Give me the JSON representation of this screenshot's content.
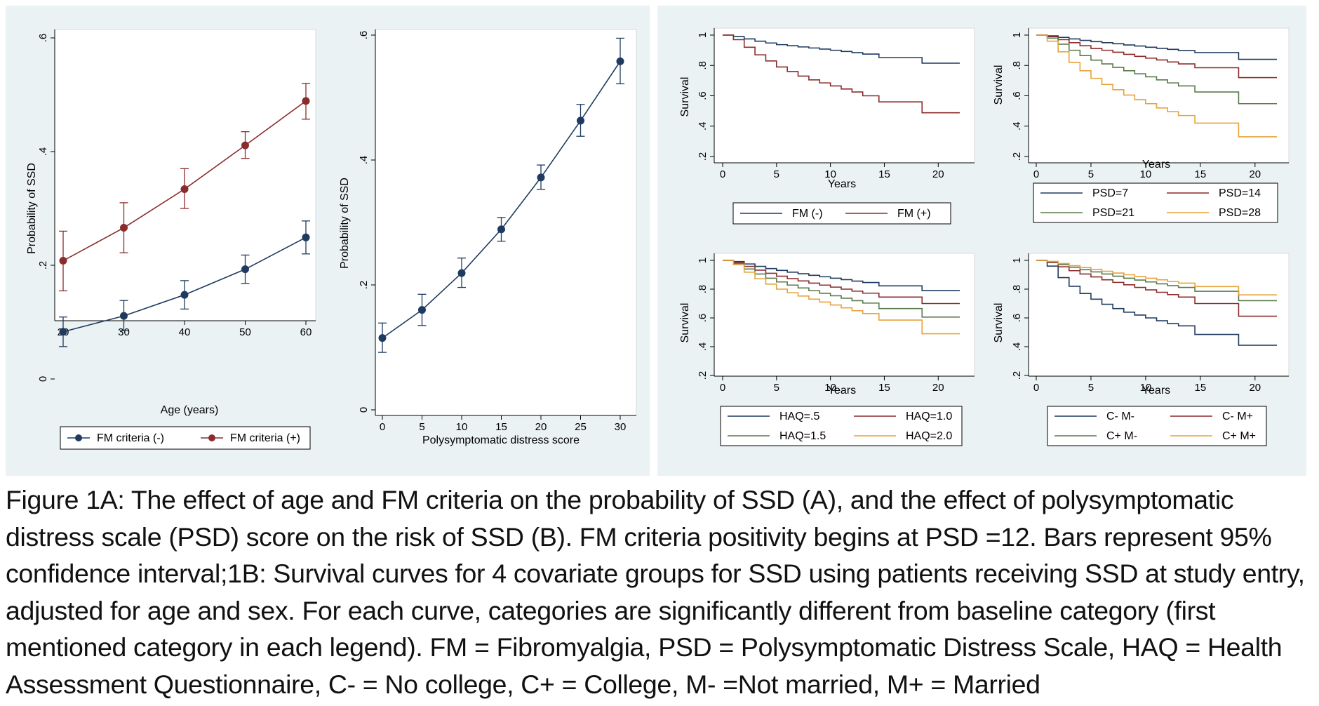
{
  "caption": "Figure 1A: The effect of age and FM criteria on the probability of SSD (A), and the effect of polysymptomatic distress scale (PSD) score on the risk of SSD (B). FM criteria positivity begins at PSD =12. Bars represent 95% confidence interval;1B: Survival curves for 4 covariate groups for SSD using patients receiving SSD at study entry, adjusted for age and sex. For each curve, categories are significantly different from baseline category (first mentioned category in each legend). FM = Fibromyalgia, PSD = Polysymptomatic Distress Scale, HAQ = Health Assessment Questionnaire, C- = No college, C+ = College, M- =Not married, M+ = Married",
  "colors": {
    "navy": "#1f3a60",
    "maroon": "#8b2c2c",
    "green": "#5a7a4a",
    "orange": "#e8a23a",
    "panel_bg": "#eaf2f3"
  },
  "chart_data": [
    {
      "id": "A1",
      "type": "line",
      "xlabel": "Age (years)",
      "ylabel": "Probability of SSD",
      "xlim": [
        20,
        60
      ],
      "ylim": [
        0,
        0.6
      ],
      "xticks": [
        20,
        30,
        40,
        50,
        60
      ],
      "xtick_labels": [
        "20",
        "30",
        "40",
        "50",
        "60"
      ],
      "yticks": [
        0,
        0.2,
        0.4,
        0.6
      ],
      "ytick_labels": [
        "0",
        ".2",
        ".4",
        ".6"
      ],
      "series": [
        {
          "name": "FM criteria (-)",
          "color": "#1f3a60",
          "x": [
            20,
            30,
            40,
            50,
            60
          ],
          "values": [
            0.083,
            0.111,
            0.148,
            0.193,
            0.249
          ],
          "lower": [
            0.057,
            0.085,
            0.123,
            0.168,
            0.22
          ],
          "upper": [
            0.109,
            0.138,
            0.173,
            0.218,
            0.278
          ]
        },
        {
          "name": "FM criteria (+)",
          "color": "#8b2c2c",
          "x": [
            20,
            30,
            40,
            50,
            60
          ],
          "values": [
            0.208,
            0.266,
            0.334,
            0.411,
            0.489
          ],
          "lower": [
            0.155,
            0.222,
            0.3,
            0.388,
            0.457
          ],
          "upper": [
            0.26,
            0.31,
            0.37,
            0.435,
            0.52
          ]
        }
      ]
    },
    {
      "id": "A2",
      "type": "line",
      "xlabel": "Polysymptomatic distress score",
      "ylabel": "Probability of SSD",
      "xlim": [
        0,
        30
      ],
      "ylim": [
        0,
        0.6
      ],
      "xticks": [
        0,
        5,
        10,
        15,
        20,
        25,
        30
      ],
      "xtick_labels": [
        "0",
        "5",
        "10",
        "15",
        "20",
        "25",
        "30"
      ],
      "yticks": [
        0,
        0.2,
        0.4,
        0.6
      ],
      "ytick_labels": [
        "0",
        ".2",
        ".4",
        ".6"
      ],
      "series": [
        {
          "name": "PSD",
          "color": "#1f3a60",
          "x": [
            0,
            5,
            10,
            15,
            20,
            25,
            30
          ],
          "values": [
            0.115,
            0.16,
            0.219,
            0.289,
            0.372,
            0.463,
            0.558
          ],
          "lower": [
            0.092,
            0.135,
            0.196,
            0.27,
            0.353,
            0.438,
            0.522
          ],
          "upper": [
            0.139,
            0.185,
            0.243,
            0.308,
            0.392,
            0.489,
            0.595
          ]
        }
      ]
    },
    {
      "id": "B1",
      "type": "line",
      "step": true,
      "xlabel": "Years",
      "ylabel": "Survival",
      "xlim": [
        0,
        22
      ],
      "ylim": [
        0.2,
        1
      ],
      "xticks": [
        0,
        5,
        10,
        15,
        20
      ],
      "xtick_labels": [
        "0",
        "5",
        "10",
        "15",
        "20"
      ],
      "yticks": [
        0.2,
        0.4,
        0.6,
        0.8,
        1
      ],
      "ytick_labels": [
        ".2",
        ".4",
        ".6",
        ".8",
        "1"
      ],
      "legend": [
        "FM (-)",
        "FM (+)"
      ],
      "series": [
        {
          "name": "FM (-)",
          "color": "#1f3a60",
          "x": [
            0,
            0.6,
            1,
            2,
            3,
            4,
            5,
            6,
            7,
            8,
            9,
            10,
            11,
            12,
            13,
            14.5,
            18.5,
            22
          ],
          "values": [
            1.0,
            1.0,
            0.99,
            0.975,
            0.96,
            0.948,
            0.937,
            0.93,
            0.922,
            0.915,
            0.908,
            0.9,
            0.892,
            0.884,
            0.875,
            0.852,
            0.815,
            0.815
          ]
        },
        {
          "name": "FM (+)",
          "color": "#8b2c2c",
          "x": [
            0,
            0.6,
            1,
            2,
            3,
            4,
            5,
            6,
            7,
            8,
            9,
            10,
            11,
            12,
            13,
            14.5,
            18.5,
            22
          ],
          "values": [
            1.0,
            1.0,
            0.97,
            0.92,
            0.87,
            0.83,
            0.79,
            0.76,
            0.73,
            0.705,
            0.685,
            0.665,
            0.645,
            0.625,
            0.6,
            0.56,
            0.488,
            0.488
          ]
        }
      ]
    },
    {
      "id": "B2",
      "type": "line",
      "step": true,
      "xlabel": "Years",
      "ylabel": "Survival",
      "xlim": [
        0,
        22
      ],
      "ylim": [
        0.2,
        1
      ],
      "xticks": [
        0,
        5,
        10,
        15,
        20
      ],
      "xtick_labels": [
        "0",
        "5",
        "10",
        "15",
        "20"
      ],
      "yticks": [
        0.2,
        0.4,
        0.6,
        0.8,
        1
      ],
      "ytick_labels": [
        ".2",
        ".4",
        ".6",
        ".8",
        "1"
      ],
      "legend": [
        "PSD=7",
        "PSD=14",
        "PSD=21",
        "PSD=28"
      ],
      "series": [
        {
          "name": "PSD=7",
          "color": "#1f3a60",
          "x": [
            0,
            0.6,
            1,
            2,
            3,
            4,
            5,
            6,
            7,
            8,
            9,
            10,
            11,
            12,
            13,
            14.5,
            18.5,
            22
          ],
          "values": [
            1.0,
            1.0,
            0.995,
            0.985,
            0.975,
            0.965,
            0.957,
            0.95,
            0.943,
            0.935,
            0.928,
            0.92,
            0.913,
            0.906,
            0.898,
            0.885,
            0.84,
            0.84
          ]
        },
        {
          "name": "PSD=14",
          "color": "#8b2c2c",
          "x": [
            0,
            0.6,
            1,
            2,
            3,
            4,
            5,
            6,
            7,
            8,
            9,
            10,
            11,
            12,
            13,
            14.5,
            18.5,
            22
          ],
          "values": [
            1.0,
            1.0,
            0.99,
            0.97,
            0.95,
            0.93,
            0.912,
            0.9,
            0.887,
            0.873,
            0.86,
            0.848,
            0.836,
            0.823,
            0.81,
            0.785,
            0.72,
            0.72
          ]
        },
        {
          "name": "PSD=21",
          "color": "#5a7a4a",
          "x": [
            0,
            0.6,
            1,
            2,
            3,
            4,
            5,
            6,
            7,
            8,
            9,
            10,
            11,
            12,
            13,
            14.5,
            18.5,
            22
          ],
          "values": [
            1.0,
            1.0,
            0.98,
            0.94,
            0.9,
            0.865,
            0.835,
            0.81,
            0.787,
            0.765,
            0.745,
            0.725,
            0.705,
            0.685,
            0.665,
            0.625,
            0.548,
            0.548
          ]
        },
        {
          "name": "PSD=28",
          "color": "#e8a23a",
          "x": [
            0,
            0.6,
            1,
            2,
            3,
            4,
            5,
            6,
            7,
            8,
            9,
            10,
            11,
            12,
            13,
            14.5,
            18.5,
            22
          ],
          "values": [
            1.0,
            1.0,
            0.96,
            0.89,
            0.82,
            0.765,
            0.715,
            0.675,
            0.64,
            0.605,
            0.575,
            0.548,
            0.52,
            0.495,
            0.47,
            0.42,
            0.33,
            0.33
          ]
        }
      ]
    },
    {
      "id": "B3",
      "type": "line",
      "step": true,
      "xlabel": "Years",
      "ylabel": "Survival",
      "xlim": [
        0,
        22
      ],
      "ylim": [
        0.2,
        1
      ],
      "xticks": [
        0,
        5,
        10,
        15,
        20
      ],
      "xtick_labels": [
        "0",
        "5",
        "10",
        "15",
        "20"
      ],
      "yticks": [
        0.2,
        0.4,
        0.6,
        0.8,
        1
      ],
      "ytick_labels": [
        ".2",
        ".4",
        ".6",
        ".8",
        "1"
      ],
      "legend": [
        "HAQ=.5",
        "HAQ=1.0",
        "HAQ=1.5",
        "HAQ=2.0"
      ],
      "series": [
        {
          "name": "HAQ=.5",
          "color": "#1f3a60",
          "x": [
            0,
            0.6,
            1,
            2,
            3,
            4,
            5,
            6,
            7,
            8,
            9,
            10,
            11,
            12,
            13,
            14.5,
            18.5,
            22
          ],
          "values": [
            1.0,
            1.0,
            0.992,
            0.975,
            0.958,
            0.943,
            0.93,
            0.918,
            0.907,
            0.896,
            0.886,
            0.876,
            0.866,
            0.856,
            0.846,
            0.823,
            0.79,
            0.79
          ]
        },
        {
          "name": "HAQ=1.0",
          "color": "#8b2c2c",
          "x": [
            0,
            0.6,
            1,
            2,
            3,
            4,
            5,
            6,
            7,
            8,
            9,
            10,
            11,
            12,
            13,
            14.5,
            18.5,
            22
          ],
          "values": [
            1.0,
            1.0,
            0.985,
            0.958,
            0.932,
            0.91,
            0.89,
            0.873,
            0.857,
            0.842,
            0.828,
            0.814,
            0.8,
            0.786,
            0.772,
            0.745,
            0.7,
            0.7
          ]
        },
        {
          "name": "HAQ=1.5",
          "color": "#5a7a4a",
          "x": [
            0,
            0.6,
            1,
            2,
            3,
            4,
            5,
            6,
            7,
            8,
            9,
            10,
            11,
            12,
            13,
            14.5,
            18.5,
            22
          ],
          "values": [
            1.0,
            1.0,
            0.978,
            0.94,
            0.905,
            0.876,
            0.85,
            0.828,
            0.808,
            0.789,
            0.771,
            0.754,
            0.737,
            0.72,
            0.703,
            0.665,
            0.606,
            0.606
          ]
        },
        {
          "name": "HAQ=2.0",
          "color": "#e8a23a",
          "x": [
            0,
            0.6,
            1,
            2,
            3,
            4,
            5,
            6,
            7,
            8,
            9,
            10,
            11,
            12,
            13,
            14.5,
            18.5,
            22
          ],
          "values": [
            1.0,
            1.0,
            0.97,
            0.918,
            0.872,
            0.835,
            0.8,
            0.775,
            0.752,
            0.73,
            0.71,
            0.69,
            0.67,
            0.65,
            0.63,
            0.585,
            0.49,
            0.49
          ]
        }
      ]
    },
    {
      "id": "B4",
      "type": "line",
      "step": true,
      "xlabel": "Years",
      "ylabel": "Survival",
      "xlim": [
        0,
        22
      ],
      "ylim": [
        0.2,
        1
      ],
      "xticks": [
        0,
        5,
        10,
        15,
        20
      ],
      "xtick_labels": [
        "0",
        "5",
        "10",
        "15",
        "20"
      ],
      "yticks": [
        0.2,
        0.4,
        0.6,
        0.8,
        1
      ],
      "ytick_labels": [
        ".2",
        ".4",
        ".6",
        ".8",
        "1"
      ],
      "legend": [
        "C- M-",
        "C- M+",
        "C+ M-",
        "C+ M+"
      ],
      "series": [
        {
          "name": "C- M-",
          "color": "#1f3a60",
          "x": [
            0,
            0.6,
            1,
            2,
            3,
            4,
            5,
            6,
            7,
            8,
            9,
            10,
            11,
            12,
            13,
            14.5,
            18.5,
            22
          ],
          "values": [
            1.0,
            1.0,
            0.96,
            0.88,
            0.82,
            0.77,
            0.73,
            0.695,
            0.665,
            0.64,
            0.62,
            0.6,
            0.58,
            0.56,
            0.545,
            0.485,
            0.41,
            0.41
          ]
        },
        {
          "name": "C- M+",
          "color": "#8b2c2c",
          "x": [
            0,
            0.6,
            1,
            2,
            3,
            4,
            5,
            6,
            7,
            8,
            9,
            10,
            11,
            12,
            13,
            14.5,
            18.5,
            22
          ],
          "values": [
            1.0,
            1.0,
            0.985,
            0.955,
            0.928,
            0.905,
            0.885,
            0.865,
            0.847,
            0.83,
            0.812,
            0.795,
            0.778,
            0.762,
            0.745,
            0.7,
            0.612,
            0.612
          ]
        },
        {
          "name": "C+ M-",
          "color": "#5a7a4a",
          "x": [
            0,
            0.6,
            1,
            2,
            3,
            4,
            5,
            6,
            7,
            8,
            9,
            10,
            11,
            12,
            13,
            14.5,
            18.5,
            22
          ],
          "values": [
            1.0,
            1.0,
            0.99,
            0.97,
            0.952,
            0.935,
            0.92,
            0.905,
            0.89,
            0.876,
            0.863,
            0.85,
            0.837,
            0.824,
            0.812,
            0.785,
            0.72,
            0.72
          ]
        },
        {
          "name": "C+ M+",
          "color": "#e8a23a",
          "x": [
            0,
            0.6,
            1,
            2,
            3,
            4,
            5,
            6,
            7,
            8,
            9,
            10,
            11,
            12,
            13,
            14.5,
            18.5,
            22
          ],
          "values": [
            1.0,
            1.0,
            0.993,
            0.978,
            0.963,
            0.95,
            0.937,
            0.924,
            0.912,
            0.9,
            0.888,
            0.876,
            0.865,
            0.853,
            0.842,
            0.818,
            0.76,
            0.76
          ]
        }
      ]
    }
  ]
}
